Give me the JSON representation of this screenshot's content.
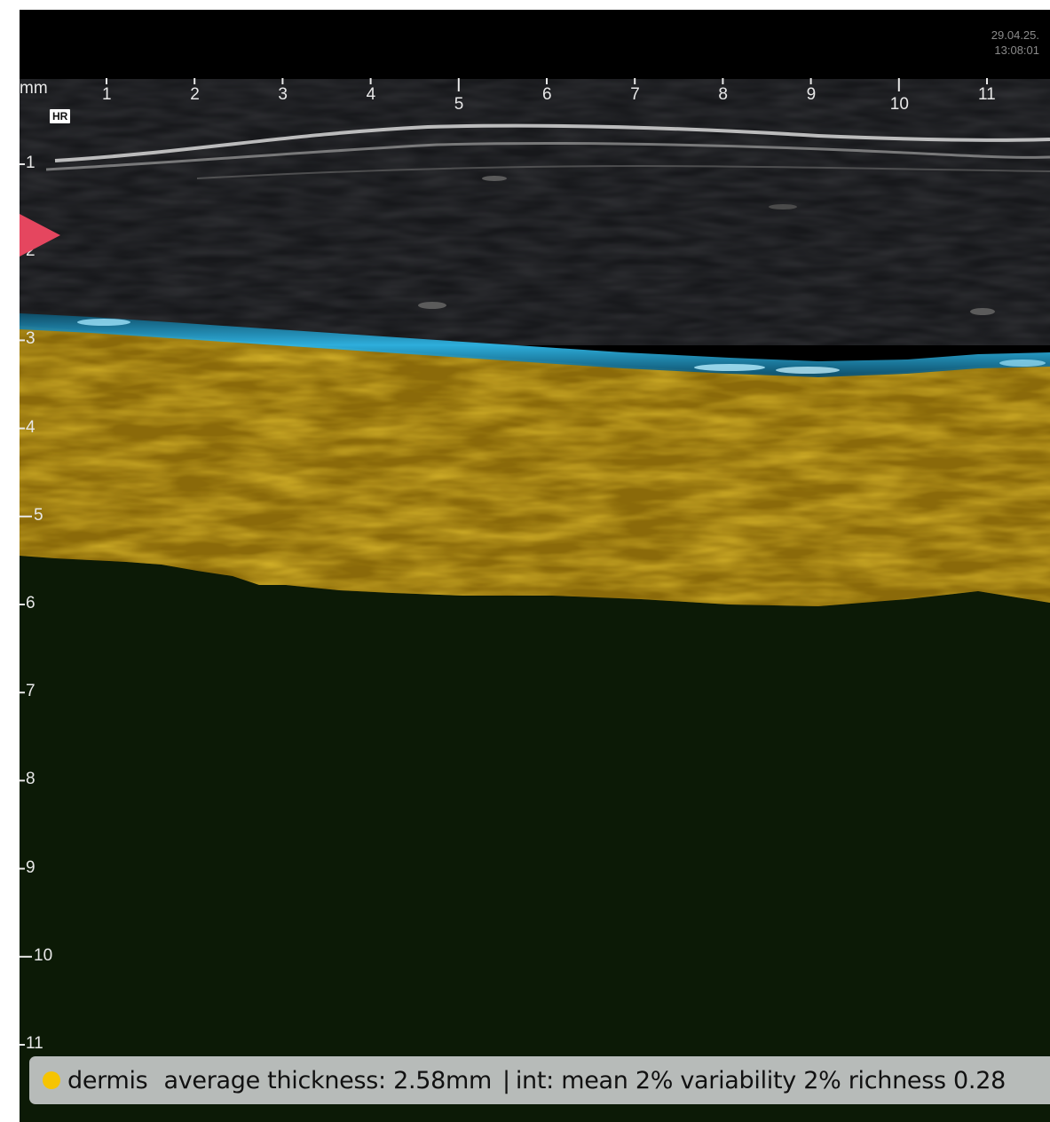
{
  "header": {
    "date": "29.04.25.",
    "time": "13:08:01"
  },
  "scale": {
    "unit": "mm",
    "mode_badge": "HR",
    "x_ticks": [
      "1",
      "2",
      "3",
      "4",
      "5",
      "6",
      "7",
      "8",
      "9",
      "10",
      "11"
    ],
    "y_ticks": [
      "1",
      "2",
      "3",
      "4",
      "5",
      "6",
      "7",
      "8",
      "9",
      "10",
      "11"
    ]
  },
  "colors": {
    "dermis": "#f6c402",
    "epidermis": "#1fa8d8",
    "subcutis": "#0c1a06",
    "marker": "#e5465f"
  },
  "status": {
    "layer": "dermis",
    "thickness": "average thickness: 2.58mm",
    "separator": "|",
    "metrics": "int: mean 2% variability 2% richness 0.28"
  }
}
